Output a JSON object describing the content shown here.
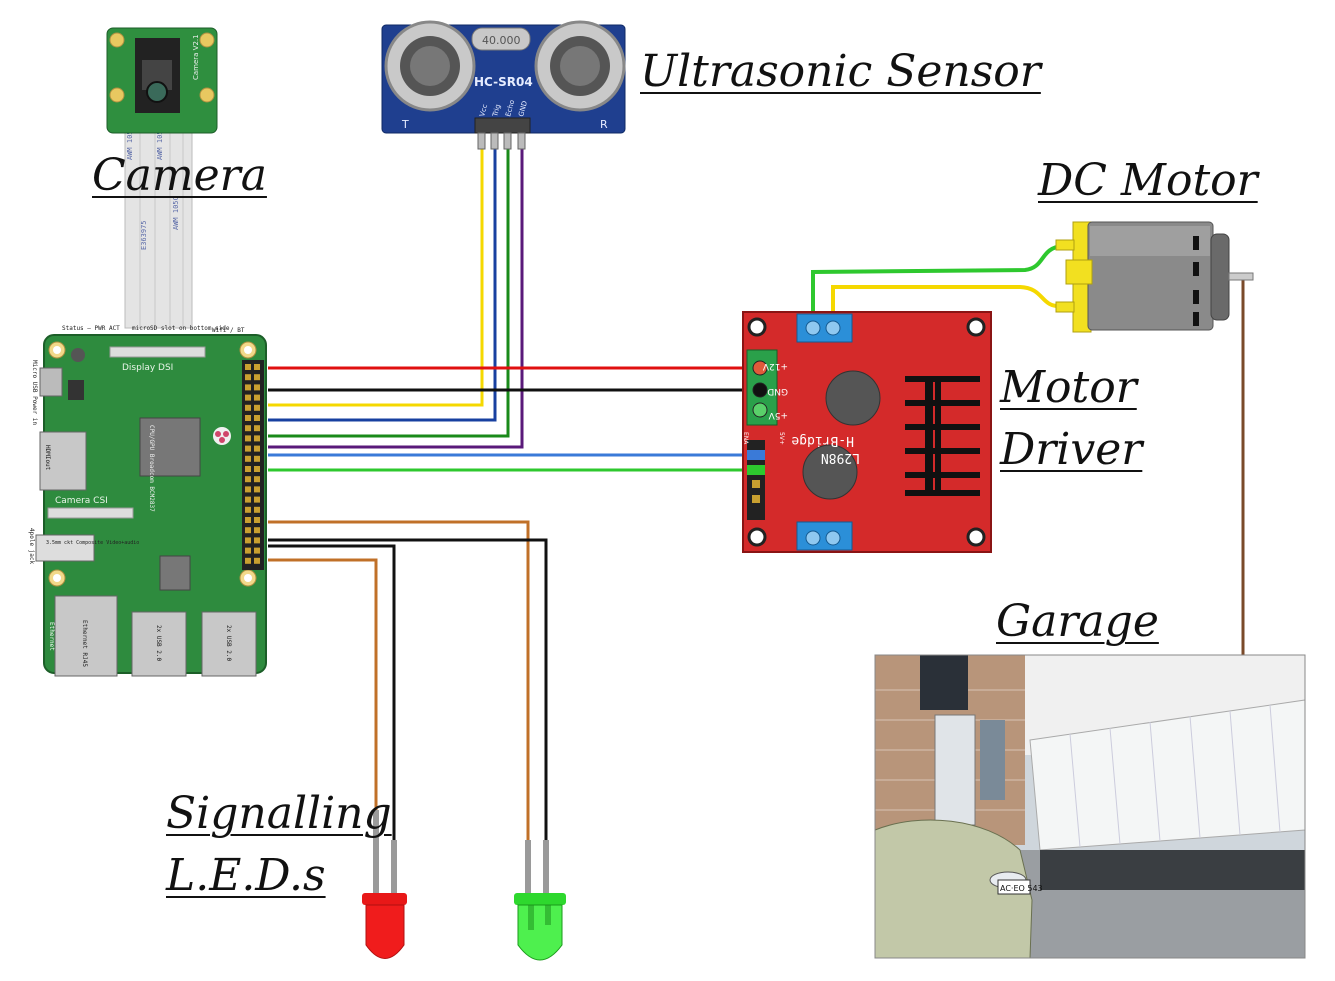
{
  "labels": {
    "camera": "Camera",
    "ultrasonic": "Ultrasonic  Sensor",
    "dc_motor": "DC  Motor",
    "motor_driver_1": "Motor",
    "motor_driver_2": "Driver",
    "garage": "Garage",
    "leds_1": "Signalling",
    "leds_2": "L.E.D.s"
  },
  "board_text": {
    "rpi_status": "Status — PWR ACT",
    "rpi_sd": "microSD slot on bottom side",
    "rpi_wifi": "Wifi / BT",
    "rpi_display": "Display DSI",
    "rpi_camera": "Camera CSI",
    "rpi_hdmi": "HDMIout",
    "rpi_power": "Micro USB Power in",
    "rpi_audio": "3.5mm ckt Composite Video+audio",
    "rpi_jack": "4pole jack",
    "rpi_cpu": "CPU/GPU Broadcom BCM2837",
    "rpi_eth": "Ethernet",
    "rpi_rj45": "Ethernet RJ45",
    "rpi_usb1": "2x USB 2.0",
    "rpi_usb2": "2x USB 2.0",
    "sensor_model": "HC-SR04",
    "sensor_xtal": "40.000",
    "sensor_pins": [
      "Vcc",
      "Trig",
      "Echo",
      "GND"
    ],
    "sensor_t": "T",
    "sensor_r": "R",
    "driver_model": "L298N",
    "driver_bridge": "H-Bridge",
    "driver_12v": "+12V",
    "driver_gnd": "GND",
    "driver_5v": "+5V",
    "driver_ena": "ENA",
    "driver_5v2": "5V+",
    "camera_text": "Camera V2.1",
    "plate": "AC·EO 543"
  },
  "colors": {
    "red_wire": "#e01010",
    "black_wire": "#111111",
    "yellow_wire": "#f5d800",
    "blue_wire": "#1840a0",
    "green_wire": "#1a8a1a",
    "purple_wire": "#5a1a7a",
    "lightblue_wire": "#3a7ad8",
    "lightgreen_wire": "#2ec82e",
    "orange_wire": "#c07028",
    "brown_wire": "#7a4a2a",
    "pcb_green": "#2e8b3e",
    "driver_red": "#d42a2a",
    "sensor_blue": "#1f3f8f"
  }
}
